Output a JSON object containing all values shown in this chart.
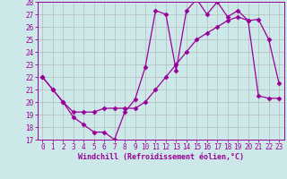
{
  "xlabel": "Windchill (Refroidissement éolien,°C)",
  "bg_color": "#cde8e8",
  "line_color": "#990099",
  "line1_x": [
    0,
    1,
    2,
    3,
    4,
    5,
    6,
    7,
    8,
    9,
    10,
    11,
    12,
    13,
    14,
    15,
    16,
    17,
    18,
    19,
    20,
    21,
    22,
    23
  ],
  "line1_y": [
    22,
    21,
    20,
    18.8,
    18.2,
    17.6,
    17.6,
    17.0,
    19.2,
    20.2,
    22.8,
    27.3,
    27.0,
    22.5,
    27.3,
    28.2,
    27.0,
    28.0,
    26.8,
    27.3,
    26.5,
    26.6,
    25.0,
    21.5
  ],
  "line2_x": [
    0,
    1,
    2,
    3,
    4,
    5,
    6,
    7,
    8,
    9,
    10,
    11,
    12,
    13,
    14,
    15,
    16,
    17,
    18,
    19,
    20,
    21,
    22,
    23
  ],
  "line2_y": [
    22,
    21.0,
    20.0,
    19.2,
    19.2,
    19.2,
    19.5,
    19.5,
    19.5,
    19.5,
    20.0,
    21.0,
    22.0,
    23.0,
    24.0,
    25.0,
    25.5,
    26.0,
    26.5,
    26.8,
    26.5,
    20.5,
    20.3,
    20.3
  ],
  "xlim": [
    -0.5,
    23.5
  ],
  "ylim": [
    17,
    28
  ],
  "xticks": [
    0,
    1,
    2,
    3,
    4,
    5,
    6,
    7,
    8,
    9,
    10,
    11,
    12,
    13,
    14,
    15,
    16,
    17,
    18,
    19,
    20,
    21,
    22,
    23
  ],
  "yticks": [
    17,
    18,
    19,
    20,
    21,
    22,
    23,
    24,
    25,
    26,
    27,
    28
  ],
  "grid_color": "#aaaaaa",
  "marker": "D",
  "marker_size": 2.5,
  "tick_fontsize": 5.5,
  "xlabel_fontsize": 6.0
}
